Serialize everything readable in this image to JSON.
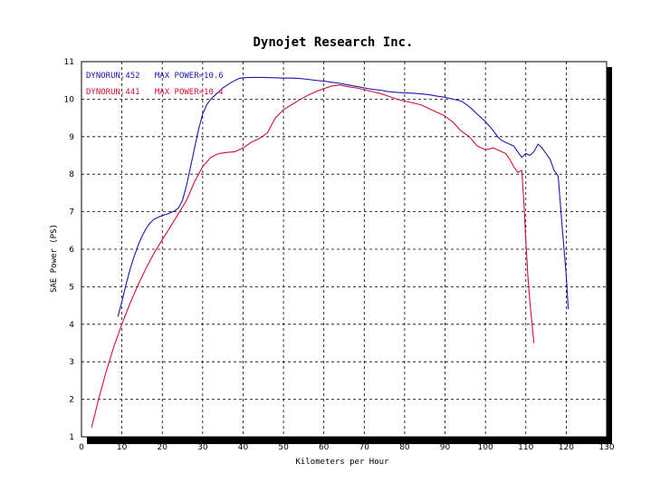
{
  "chart_data": {
    "type": "line",
    "title": "Dynojet  Research  Inc.",
    "xlabel": "Kilometers per Hour",
    "ylabel": "SAE Power (PS)",
    "xlim": [
      0,
      130
    ],
    "ylim": [
      1,
      11
    ],
    "x_ticks": [
      "0",
      "10",
      "20",
      "30",
      "40",
      "50",
      "60",
      "70",
      "80",
      "90",
      "100",
      "110",
      "120",
      "130"
    ],
    "y_ticks": [
      "1",
      "2",
      "3",
      "4",
      "5",
      "6",
      "7",
      "8",
      "9",
      "10",
      "11"
    ],
    "grid": true,
    "legend_position": "top-left",
    "series": [
      {
        "name": "DYNORUN.452   MAX POWER=10.6",
        "color": "#1a1aa6",
        "points": [
          [
            9,
            4.2
          ],
          [
            10,
            4.6
          ],
          [
            11,
            5.05
          ],
          [
            12,
            5.45
          ],
          [
            13,
            5.8
          ],
          [
            14,
            6.1
          ],
          [
            15,
            6.35
          ],
          [
            16,
            6.55
          ],
          [
            17,
            6.7
          ],
          [
            18,
            6.8
          ],
          [
            19,
            6.85
          ],
          [
            20,
            6.9
          ],
          [
            21,
            6.93
          ],
          [
            22,
            6.97
          ],
          [
            23,
            7.02
          ],
          [
            24,
            7.1
          ],
          [
            25,
            7.3
          ],
          [
            26,
            7.7
          ],
          [
            27,
            8.2
          ],
          [
            28,
            8.7
          ],
          [
            29,
            9.2
          ],
          [
            30,
            9.6
          ],
          [
            31,
            9.85
          ],
          [
            32,
            10.0
          ],
          [
            33,
            10.1
          ],
          [
            34,
            10.2
          ],
          [
            35,
            10.3
          ],
          [
            36,
            10.37
          ],
          [
            37,
            10.44
          ],
          [
            38,
            10.5
          ],
          [
            39,
            10.55
          ],
          [
            40,
            10.57
          ],
          [
            42,
            10.58
          ],
          [
            45,
            10.58
          ],
          [
            48,
            10.57
          ],
          [
            50,
            10.56
          ],
          [
            52,
            10.56
          ],
          [
            54,
            10.55
          ],
          [
            56,
            10.53
          ],
          [
            58,
            10.5
          ],
          [
            60,
            10.48
          ],
          [
            62,
            10.45
          ],
          [
            64,
            10.42
          ],
          [
            66,
            10.38
          ],
          [
            68,
            10.34
          ],
          [
            70,
            10.3
          ],
          [
            72,
            10.26
          ],
          [
            74,
            10.24
          ],
          [
            76,
            10.2
          ],
          [
            78,
            10.18
          ],
          [
            80,
            10.17
          ],
          [
            82,
            10.16
          ],
          [
            84,
            10.14
          ],
          [
            86,
            10.12
          ],
          [
            88,
            10.08
          ],
          [
            90,
            10.05
          ],
          [
            92,
            10.0
          ],
          [
            94,
            9.95
          ],
          [
            95,
            9.88
          ],
          [
            96,
            9.8
          ],
          [
            97,
            9.7
          ],
          [
            98,
            9.6
          ],
          [
            99,
            9.5
          ],
          [
            100,
            9.4
          ],
          [
            101,
            9.28
          ],
          [
            102,
            9.15
          ],
          [
            103,
            9.0
          ],
          [
            104,
            8.9
          ],
          [
            105,
            8.85
          ],
          [
            106,
            8.8
          ],
          [
            107,
            8.75
          ],
          [
            108,
            8.6
          ],
          [
            109,
            8.45
          ],
          [
            110,
            8.55
          ],
          [
            111,
            8.5
          ],
          [
            112,
            8.6
          ],
          [
            113,
            8.8
          ],
          [
            114,
            8.7
          ],
          [
            115,
            8.55
          ],
          [
            116,
            8.4
          ],
          [
            117,
            8.1
          ],
          [
            118,
            7.95
          ],
          [
            119,
            6.6
          ],
          [
            120,
            5.3
          ],
          [
            120.5,
            4.4
          ]
        ]
      },
      {
        "name": "DYNORUN.441   MAX POWER=10.4",
        "color": "#cc1133",
        "points": [
          [
            2.5,
            1.25
          ],
          [
            4,
            1.9
          ],
          [
            6,
            2.7
          ],
          [
            8,
            3.4
          ],
          [
            10,
            4.0
          ],
          [
            12,
            4.55
          ],
          [
            14,
            5.05
          ],
          [
            16,
            5.5
          ],
          [
            18,
            5.9
          ],
          [
            20,
            6.25
          ],
          [
            22,
            6.6
          ],
          [
            24,
            6.95
          ],
          [
            26,
            7.3
          ],
          [
            28,
            7.8
          ],
          [
            30,
            8.2
          ],
          [
            32,
            8.45
          ],
          [
            34,
            8.55
          ],
          [
            36,
            8.58
          ],
          [
            38,
            8.6
          ],
          [
            40,
            8.7
          ],
          [
            42,
            8.85
          ],
          [
            44,
            8.95
          ],
          [
            46,
            9.1
          ],
          [
            48,
            9.5
          ],
          [
            50,
            9.72
          ],
          [
            52,
            9.85
          ],
          [
            54,
            9.98
          ],
          [
            56,
            10.1
          ],
          [
            58,
            10.2
          ],
          [
            60,
            10.28
          ],
          [
            62,
            10.35
          ],
          [
            64,
            10.38
          ],
          [
            66,
            10.33
          ],
          [
            68,
            10.3
          ],
          [
            70,
            10.25
          ],
          [
            72,
            10.2
          ],
          [
            74,
            10.15
          ],
          [
            76,
            10.08
          ],
          [
            78,
            10.0
          ],
          [
            80,
            9.95
          ],
          [
            82,
            9.9
          ],
          [
            84,
            9.85
          ],
          [
            86,
            9.75
          ],
          [
            88,
            9.65
          ],
          [
            90,
            9.55
          ],
          [
            92,
            9.38
          ],
          [
            94,
            9.15
          ],
          [
            96,
            9.0
          ],
          [
            98,
            8.75
          ],
          [
            100,
            8.65
          ],
          [
            102,
            8.7
          ],
          [
            104,
            8.6
          ],
          [
            105,
            8.55
          ],
          [
            106,
            8.4
          ],
          [
            107,
            8.2
          ],
          [
            108,
            8.05
          ],
          [
            109,
            8.1
          ],
          [
            109.5,
            7.3
          ],
          [
            110,
            6.2
          ],
          [
            110.5,
            5.3
          ],
          [
            111,
            4.6
          ],
          [
            112,
            3.5
          ]
        ]
      }
    ]
  }
}
